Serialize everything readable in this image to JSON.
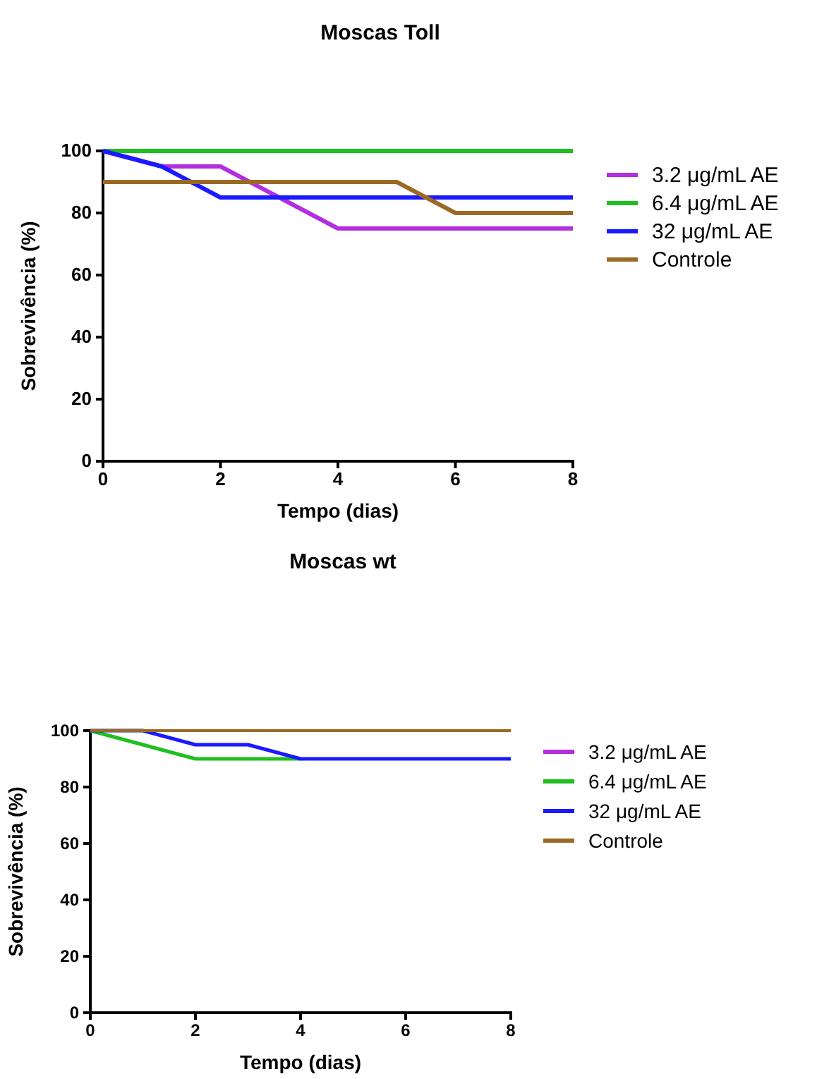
{
  "chart_data": [
    {
      "type": "line",
      "title": "Moscas Toll",
      "xlabel": "Tempo (dias)",
      "ylabel": "Sobrevivência (%)",
      "x": [
        0,
        1,
        2,
        3,
        4,
        5,
        6,
        7,
        8
      ],
      "xlim": [
        0,
        8
      ],
      "xticks": [
        0,
        2,
        4,
        6,
        8
      ],
      "ylim": [
        0,
        100
      ],
      "yticks": [
        0,
        20,
        40,
        60,
        80,
        100
      ],
      "legend": "right",
      "marker": "none",
      "line_style": "solid",
      "grid": false,
      "series": [
        {
          "name": "3.2 μg/mL AE",
          "color": "#b22ee0",
          "values": [
            100,
            95,
            95,
            85,
            75,
            75,
            75,
            75,
            75
          ]
        },
        {
          "name": "6.4 μg/mL AE",
          "color": "#1fbf1f",
          "values": [
            100,
            100,
            100,
            100,
            100,
            100,
            100,
            100,
            100
          ]
        },
        {
          "name": "32 μg/mL AE",
          "color": "#1a1aff",
          "values": [
            100,
            95,
            85,
            85,
            85,
            85,
            85,
            85,
            85
          ]
        },
        {
          "name": "Controle",
          "color": "#9a6a24",
          "values": [
            90,
            90,
            90,
            90,
            90,
            90,
            80,
            80,
            80
          ]
        }
      ]
    },
    {
      "type": "line",
      "title": "Moscas wt",
      "xlabel": "Tempo (dias)",
      "ylabel": "Sobrevivência (%)",
      "x": [
        0,
        1,
        2,
        3,
        4,
        5,
        6,
        7,
        8
      ],
      "xlim": [
        0,
        8
      ],
      "xticks": [
        0,
        2,
        4,
        6,
        8
      ],
      "ylim": [
        0,
        100
      ],
      "yticks": [
        0,
        20,
        40,
        60,
        80,
        100
      ],
      "legend": "right",
      "marker": "none",
      "line_style": "solid",
      "grid": false,
      "series": [
        {
          "name": "3.2 μg/mL AE",
          "color": "#b22ee0",
          "values": [
            null,
            null,
            null,
            null,
            null,
            null,
            null,
            null,
            null
          ]
        },
        {
          "name": "6.4 μg/mL AE",
          "color": "#1fbf1f",
          "values": [
            100,
            95,
            90,
            90,
            90,
            null,
            null,
            null,
            null
          ]
        },
        {
          "name": "32 μg/mL AE",
          "color": "#1a1aff",
          "values": [
            100,
            100,
            95,
            95,
            90,
            90,
            90,
            90,
            90
          ]
        },
        {
          "name": "Controle",
          "color": "#9a6a24",
          "values": [
            100,
            100,
            100,
            100,
            100,
            100,
            100,
            100,
            100
          ]
        }
      ]
    }
  ]
}
